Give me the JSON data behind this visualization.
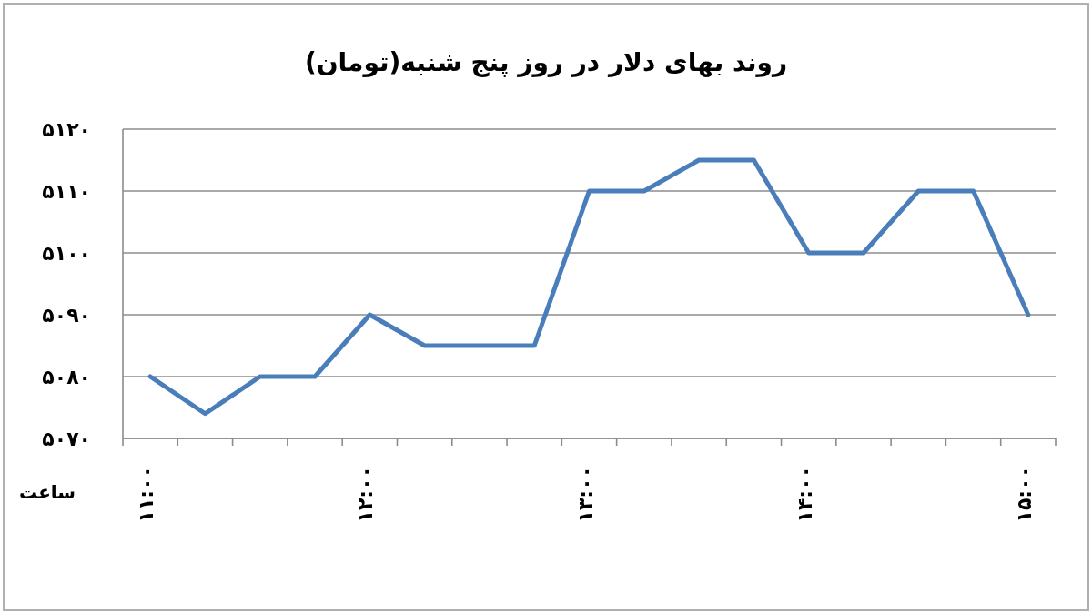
{
  "chart_data": {
    "type": "line",
    "title": "روند بهای دلار در روز پنج شنبه(تومان)",
    "xlabel": "ساعت",
    "categories": [
      "۱۱:۰۰",
      null,
      null,
      null,
      "۱۲:۰۰",
      null,
      null,
      null,
      "۱۳:۰۰",
      null,
      null,
      null,
      "۱۴:۰۰",
      null,
      null,
      null,
      "۱۵:۰۰"
    ],
    "values": [
      5080,
      5074,
      5080,
      5080,
      5090,
      5085,
      5085,
      5085,
      5110,
      5110,
      5115,
      5115,
      5100,
      5100,
      5110,
      5110,
      5090
    ],
    "color": "#4a7ebb",
    "ylim": [
      5070,
      5120
    ],
    "yticks": [
      {
        "value": 5070,
        "label": "۵۰۷۰"
      },
      {
        "value": 5080,
        "label": "۵۰۸۰"
      },
      {
        "value": 5090,
        "label": "۵۰۹۰"
      },
      {
        "value": 5100,
        "label": "۵۱۰۰"
      },
      {
        "value": 5110,
        "label": "۵۱۱۰"
      },
      {
        "value": 5120,
        "label": "۵۱۲۰"
      }
    ],
    "grid": "y",
    "marker": "none",
    "line_style": "solid"
  }
}
